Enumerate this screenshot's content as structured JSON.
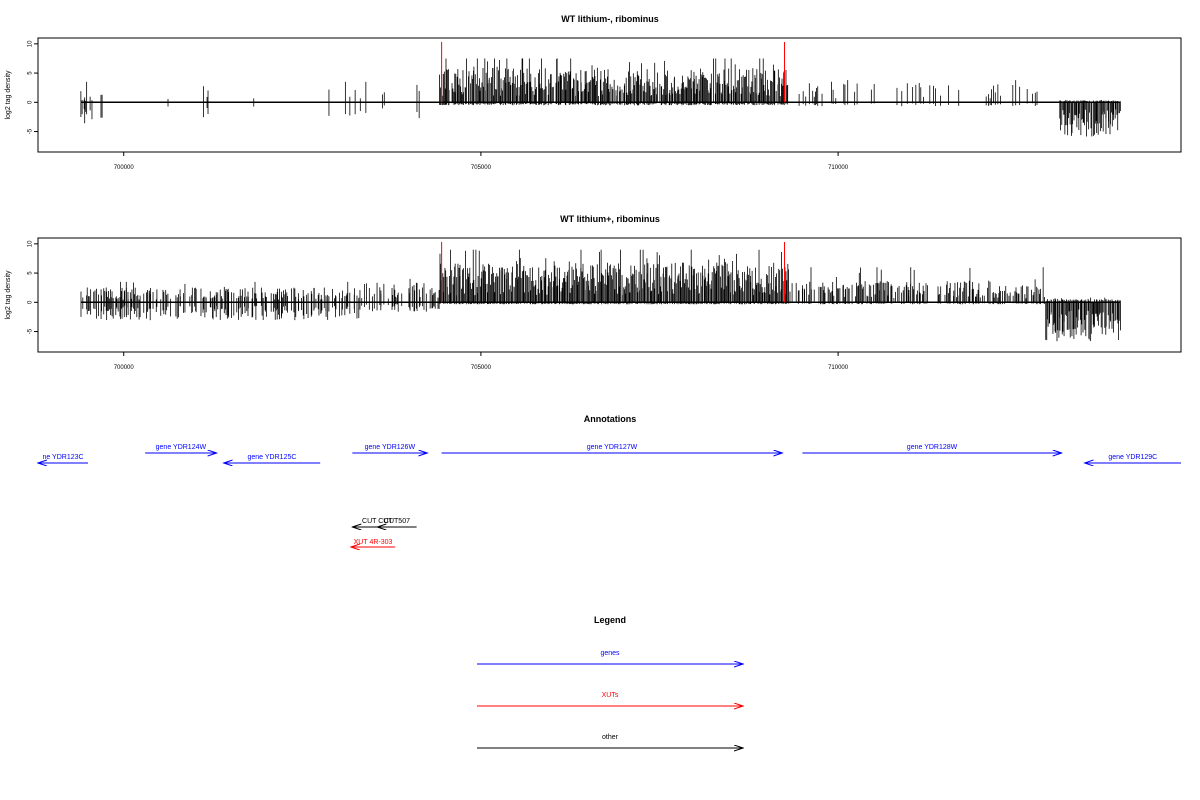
{
  "chart_data": [
    {
      "type": "bar",
      "title": "WT lithium-, ribominus",
      "ylabel": "log2 tag density",
      "xlim": [
        698800,
        714800
      ],
      "ylim": [
        -8.5,
        11
      ],
      "yticks": [
        -5,
        0,
        5,
        10
      ],
      "xticks": [
        700000,
        705000,
        710000
      ],
      "xtick_labels": [
        "700000",
        "705000",
        "710000"
      ],
      "baseline_range": [
        699400,
        713950
      ],
      "highlight_positions": [
        704450,
        709250
      ],
      "highlight_color": "#ff0000",
      "bar_color": "#000000",
      "signal_profile": [
        {
          "x": [
            699400,
            704200
          ],
          "density": 0.05,
          "pos_mean": 1.8,
          "pos_max": 3.5,
          "neg_mean": 1.6,
          "neg_max": 3.5
        },
        {
          "x": [
            699400,
            699550
          ],
          "density": 0.4,
          "pos_mean": 0.5,
          "pos_max": 1,
          "neg_mean": 3,
          "neg_max": 4
        },
        {
          "x": [
            704420,
            709300
          ],
          "density": 0.95,
          "pos_mean": 3.5,
          "pos_max": 7.5,
          "neg_mean": 0.3,
          "neg_max": 0.6
        },
        {
          "x": [
            709300,
            712900
          ],
          "density": 0.12,
          "pos_mean": 2,
          "pos_max": 3.8,
          "neg_mean": 0.4,
          "neg_max": 0.8
        },
        {
          "x": [
            713100,
            713950
          ],
          "density": 0.9,
          "pos_mean": 0.2,
          "pos_max": 0.4,
          "neg_mean": 3.5,
          "neg_max": 6.8
        }
      ]
    },
    {
      "type": "bar",
      "title": "WT lithium+, ribominus",
      "ylabel": "log2 tag density",
      "xlim": [
        698800,
        714800
      ],
      "ylim": [
        -8.5,
        11
      ],
      "yticks": [
        -5,
        0,
        5,
        10
      ],
      "xticks": [
        700000,
        705000,
        710000
      ],
      "xtick_labels": [
        "700000",
        "705000",
        "710000"
      ],
      "baseline_range": [
        699400,
        713950
      ],
      "highlight_positions": [
        704450,
        709250
      ],
      "highlight_color": "#ff0000",
      "bar_color": "#000000",
      "signal_profile": [
        {
          "x": [
            699400,
            703300
          ],
          "density": 0.55,
          "pos_mean": 1.5,
          "pos_max": 3.5,
          "neg_mean": 1.8,
          "neg_max": 4.5
        },
        {
          "x": [
            703300,
            704420
          ],
          "density": 0.45,
          "pos_mean": 2,
          "pos_max": 4,
          "neg_mean": 1,
          "neg_max": 2.5
        },
        {
          "x": [
            704420,
            709300
          ],
          "density": 1.0,
          "pos_mean": 4,
          "pos_max": 9,
          "neg_mean": 0.2,
          "neg_max": 2.5
        },
        {
          "x": [
            709300,
            712900
          ],
          "density": 0.6,
          "pos_mean": 2.2,
          "pos_max": 6,
          "neg_mean": 0.2,
          "neg_max": 0.5
        },
        {
          "x": [
            712900,
            713950
          ],
          "density": 0.95,
          "pos_mean": 0.3,
          "pos_max": 0.8,
          "neg_mean": 4,
          "neg_max": 7.5
        }
      ]
    }
  ],
  "annotations": {
    "title": "Annotations",
    "genes": [
      {
        "label": "ne YDR123C",
        "start": 698800,
        "end": 699500,
        "strand": "-",
        "row": 2
      },
      {
        "label": "gene YDR124W",
        "start": 700300,
        "end": 701300,
        "strand": "+",
        "row": 1
      },
      {
        "label": "gene YDR125C",
        "start": 701400,
        "end": 702750,
        "strand": "-",
        "row": 2
      },
      {
        "label": "gene YDR126W",
        "start": 703200,
        "end": 704250,
        "strand": "+",
        "row": 1
      },
      {
        "label": "gene YDR127W",
        "start": 704450,
        "end": 709220,
        "strand": "+",
        "row": 1
      },
      {
        "label": "gene YDR128W",
        "start": 709500,
        "end": 713130,
        "strand": "+",
        "row": 1
      },
      {
        "label": "gene YDR129C",
        "start": 713450,
        "end": 714800,
        "strand": "-",
        "row": 2
      }
    ],
    "others": [
      {
        "label": "CUT CUT",
        "start": 703200,
        "end": 703900,
        "strand": "-",
        "color": "#000000"
      },
      {
        "label": "CUT507",
        "start": 703550,
        "end": 704100,
        "strand": "-",
        "color": "#000000"
      }
    ],
    "xuts": [
      {
        "label": "XUT 4R-303",
        "start": 703180,
        "end": 703800,
        "strand": "-",
        "color": "#ff0000"
      }
    ]
  },
  "legend": {
    "title": "Legend",
    "items": [
      {
        "label": "genes",
        "color": "#0000ff"
      },
      {
        "label": "XUTs",
        "color": "#ff0000"
      },
      {
        "label": "other",
        "color": "#000000"
      }
    ]
  }
}
